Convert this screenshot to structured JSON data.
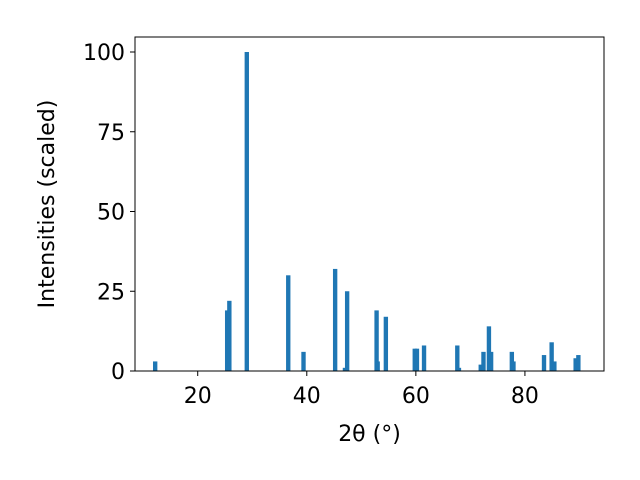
{
  "chart_data": {
    "type": "bar",
    "title": "",
    "xlabel": "2θ (°)",
    "ylabel": "Intensities (scaled)",
    "xlim": [
      8.5,
      94.5
    ],
    "ylim": [
      0,
      100
    ],
    "bar_width": 0.8,
    "grid": false,
    "legend": "none",
    "x_ticks": [
      20,
      40,
      60,
      80
    ],
    "y_ticks": [
      0,
      25,
      50,
      75,
      100
    ],
    "bar_color": "#1f77b4",
    "series": [
      {
        "x": [
          12.2,
          25.4,
          25.8,
          29.0,
          36.6,
          39.4,
          45.2,
          47.0,
          47.4,
          52.8,
          53.0,
          54.5,
          59.8,
          60.2,
          61.5,
          67.6,
          67.9,
          71.9,
          72.4,
          73.4,
          73.8,
          77.6,
          77.9,
          83.5,
          84.9,
          85.4,
          89.3,
          89.8
        ],
        "values": [
          3,
          19,
          22,
          100,
          30,
          6,
          32,
          1,
          25,
          19,
          3,
          17,
          7,
          7,
          8,
          8,
          1,
          2,
          6,
          14,
          6,
          6,
          3,
          5,
          9,
          3,
          4,
          5
        ]
      }
    ]
  }
}
